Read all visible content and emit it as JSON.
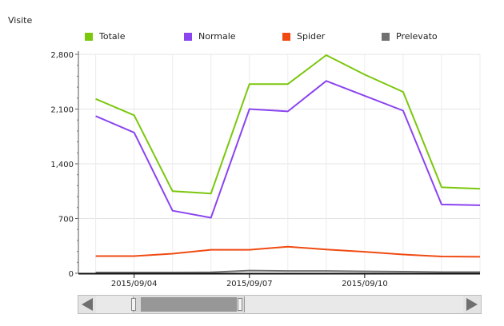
{
  "chart_data": {
    "type": "line",
    "title": "Visite",
    "x_ticks": [
      "2015/09/04",
      "2015/09/07",
      "2015/09/10"
    ],
    "y_ticks": [
      "0",
      "700",
      "1,400",
      "2,100",
      "2,800"
    ],
    "ylim": [
      0,
      2800
    ],
    "x_days": [
      3,
      13
    ],
    "x": [
      3,
      4,
      5,
      6,
      7,
      8,
      9,
      10,
      11,
      12,
      13
    ],
    "grid": true,
    "legend_position": "top",
    "series": [
      {
        "name": "Totale",
        "color": "#7ac70c",
        "values": [
          2230,
          2020,
          1050,
          1020,
          2420,
          2420,
          2790,
          2540,
          2320,
          1100,
          1080
        ]
      },
      {
        "name": "Normale",
        "color": "#8a44f0",
        "values": [
          2010,
          1800,
          800,
          710,
          2100,
          2070,
          2460,
          2270,
          2080,
          880,
          870
        ]
      },
      {
        "name": "Spider",
        "color": "#f04a12",
        "values": [
          220,
          220,
          250,
          300,
          300,
          340,
          305,
          275,
          240,
          215,
          210
        ]
      },
      {
        "name": "Prelevato",
        "color": "#707070",
        "values": [
          10,
          10,
          10,
          12,
          35,
          30,
          30,
          25,
          20,
          15,
          15
        ]
      }
    ]
  }
}
